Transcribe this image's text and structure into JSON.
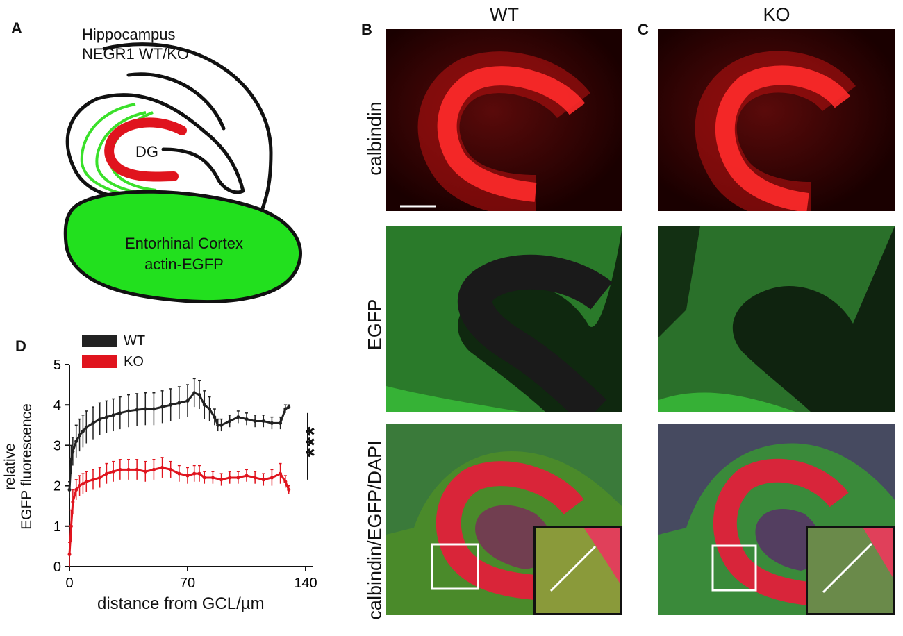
{
  "panel_a": {
    "letter": "A",
    "title_line1": "Hippocampus",
    "title_line2": "NEGR1 WT/KO",
    "dg_label": "DG",
    "ec_line1": "Entorhinal Cortex",
    "ec_line2": "actin-EGFP",
    "colors": {
      "dg": "#e0141e",
      "ec": "#22e01e",
      "fibers": "#3ae02a",
      "outline": "#111111"
    }
  },
  "panel_b": {
    "letter": "B",
    "title": "WT"
  },
  "panel_c": {
    "letter": "C",
    "title": "KO"
  },
  "row_labels": [
    "calbindin",
    "EGFP",
    "calbindin/EGFP/DAPI"
  ],
  "panel_d": {
    "letter": "D",
    "significance": "***",
    "legend": [
      {
        "label": "WT",
        "color": "#222222"
      },
      {
        "label": "KO",
        "color": "#e0141e"
      }
    ]
  },
  "chart_data": {
    "type": "line",
    "xlabel": "distance from GCL/µm",
    "ylabel_line1": "relative",
    "ylabel_line2": "EGFP fluorescence",
    "xlim": [
      0,
      140
    ],
    "ylim": [
      0,
      5
    ],
    "xticks": [
      0,
      70,
      140
    ],
    "yticks": [
      0,
      1,
      2,
      3,
      4,
      5
    ],
    "series": [
      {
        "name": "WT",
        "color": "#222222",
        "x": [
          0,
          1,
          2,
          4,
          6,
          8,
          10,
          14,
          18,
          22,
          26,
          30,
          35,
          40,
          45,
          50,
          55,
          60,
          65,
          70,
          74,
          77,
          80,
          83,
          86,
          88,
          90,
          95,
          100,
          105,
          110,
          115,
          120,
          125,
          128,
          130
        ],
        "y": [
          1.9,
          2.65,
          2.85,
          3.1,
          3.25,
          3.35,
          3.45,
          3.55,
          3.65,
          3.7,
          3.75,
          3.8,
          3.85,
          3.88,
          3.9,
          3.9,
          3.95,
          4.0,
          4.05,
          4.1,
          4.3,
          4.25,
          4.0,
          3.9,
          3.7,
          3.5,
          3.5,
          3.6,
          3.7,
          3.65,
          3.6,
          3.6,
          3.55,
          3.55,
          3.9,
          3.95
        ],
        "err": [
          0.2,
          0.35,
          0.35,
          0.4,
          0.4,
          0.4,
          0.4,
          0.4,
          0.4,
          0.4,
          0.4,
          0.4,
          0.4,
          0.4,
          0.4,
          0.4,
          0.4,
          0.4,
          0.4,
          0.4,
          0.35,
          0.35,
          0.35,
          0.3,
          0.2,
          0.15,
          0.15,
          0.15,
          0.15,
          0.15,
          0.15,
          0.15,
          0.15,
          0.15,
          0.1,
          0.05
        ]
      },
      {
        "name": "KO",
        "color": "#e0141e",
        "x": [
          0,
          1,
          2,
          4,
          6,
          8,
          10,
          14,
          18,
          22,
          26,
          30,
          35,
          40,
          45,
          50,
          55,
          60,
          65,
          70,
          74,
          77,
          80,
          85,
          90,
          95,
          100,
          105,
          110,
          115,
          120,
          125,
          128,
          130
        ],
        "y": [
          0.3,
          1.0,
          1.6,
          1.9,
          2.0,
          2.05,
          2.1,
          2.15,
          2.2,
          2.3,
          2.35,
          2.4,
          2.4,
          2.4,
          2.35,
          2.4,
          2.45,
          2.4,
          2.3,
          2.25,
          2.3,
          2.3,
          2.2,
          2.2,
          2.15,
          2.2,
          2.2,
          2.25,
          2.2,
          2.15,
          2.2,
          2.3,
          2.1,
          1.9
        ],
        "err": [
          0.3,
          0.4,
          0.3,
          0.25,
          0.25,
          0.25,
          0.25,
          0.25,
          0.25,
          0.25,
          0.25,
          0.25,
          0.25,
          0.25,
          0.25,
          0.25,
          0.25,
          0.2,
          0.2,
          0.2,
          0.2,
          0.2,
          0.15,
          0.15,
          0.15,
          0.15,
          0.15,
          0.15,
          0.15,
          0.15,
          0.2,
          0.25,
          0.15,
          0.1
        ]
      }
    ]
  }
}
